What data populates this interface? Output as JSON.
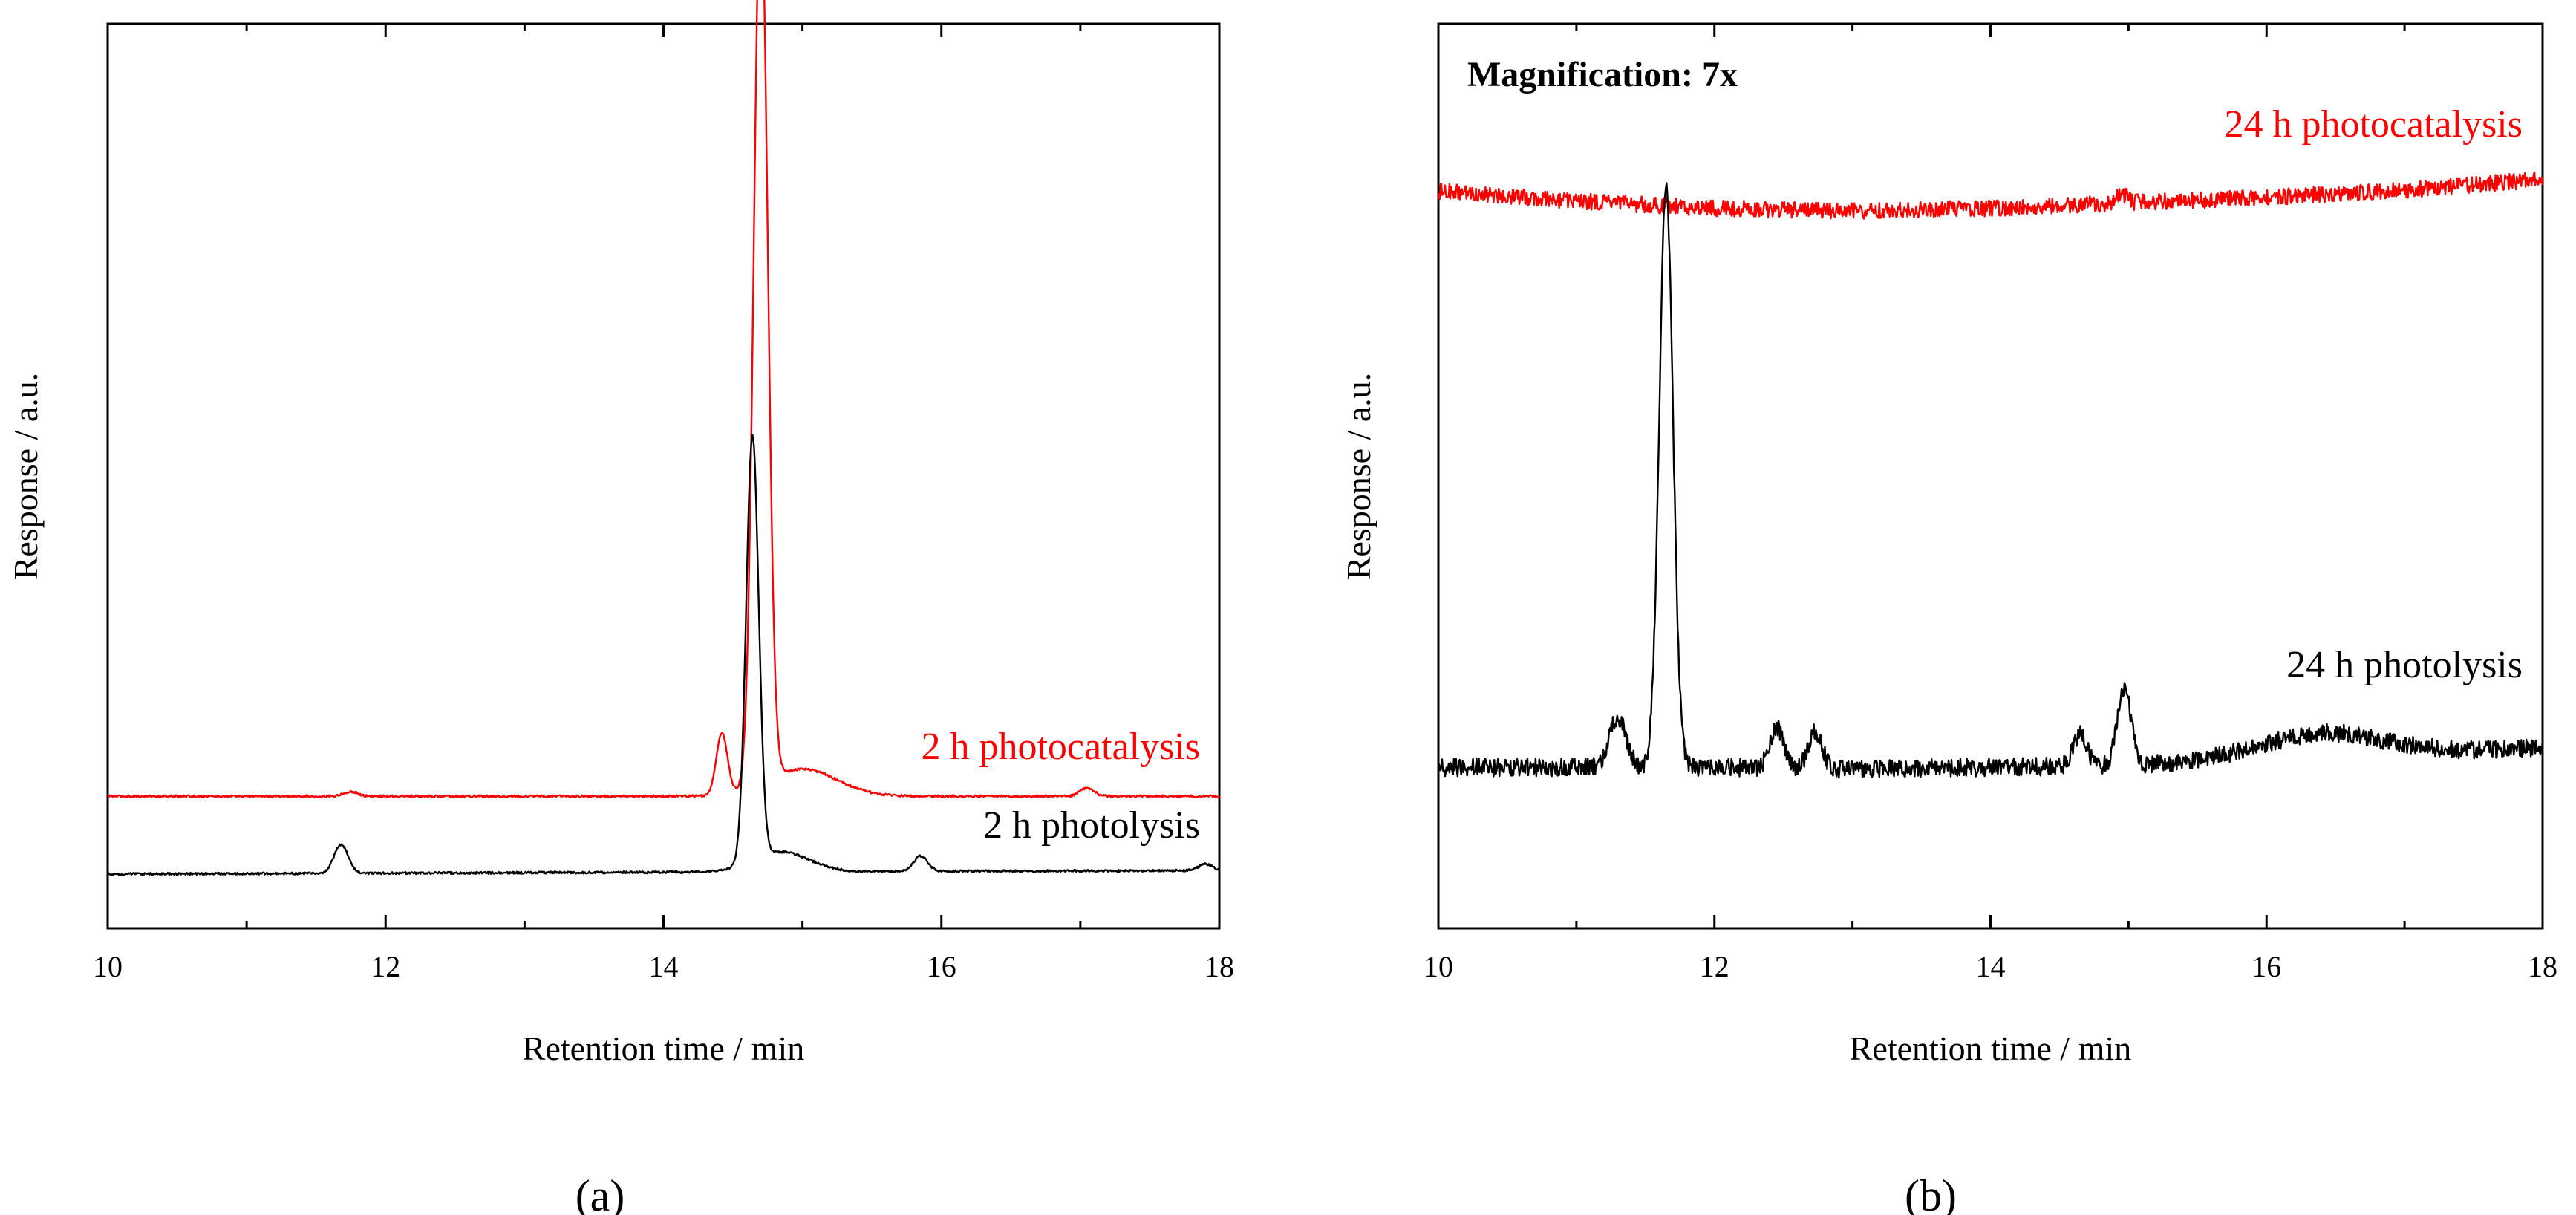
{
  "colors": {
    "red": "#ff0000",
    "black": "#000000",
    "axis": "#000000"
  },
  "chart_data": [
    {
      "id": "a",
      "type": "line",
      "panel_label": "(a)",
      "xlabel": "Retention time / min",
      "ylabel": "Response / a.u.",
      "xlim": [
        10,
        18
      ],
      "ylim": [
        0,
        100
      ],
      "x_ticks": [
        10,
        12,
        14,
        16,
        18
      ],
      "x_tick_labels": [
        "10",
        "12",
        "14",
        "16",
        "18"
      ],
      "annotation": null,
      "series": [
        {
          "name": "2 h photocatalysis",
          "label": "2 h photocatalysis",
          "color": "#ff0000",
          "noise": 0.12,
          "baseline": [
            [
              10,
              14.6
            ],
            [
              18,
              14.6
            ]
          ],
          "peaks": [
            [
              11.75,
              0.5,
              0.05
            ],
            [
              14.42,
              6.8,
              0.04
            ],
            [
              14.7,
              99.0,
              0.05
            ],
            [
              15.0,
              3.0,
              0.25
            ],
            [
              17.05,
              0.9,
              0.05
            ]
          ]
        },
        {
          "name": "2 h photolysis",
          "label": "2 h photolysis",
          "color": "#000000",
          "noise": 0.12,
          "baseline": [
            [
              10,
              6.0
            ],
            [
              18,
              6.4
            ]
          ],
          "peaks": [
            [
              11.68,
              3.2,
              0.05
            ],
            [
              14.64,
              47.0,
              0.045
            ],
            [
              14.85,
              2.2,
              0.2
            ],
            [
              15.85,
              1.7,
              0.05
            ],
            [
              17.9,
              0.7,
              0.05
            ]
          ]
        }
      ]
    },
    {
      "id": "b",
      "type": "line",
      "panel_label": "(b)",
      "xlabel": "Retention time / min",
      "ylabel": "Response / a.u.",
      "xlim": [
        10,
        18
      ],
      "ylim": [
        0,
        100
      ],
      "x_ticks": [
        10,
        12,
        14,
        16,
        18
      ],
      "x_tick_labels": [
        "10",
        "12",
        "14",
        "16",
        "18"
      ],
      "annotation": "Magnification: 7x",
      "series": [
        {
          "name": "24 h photocatalysis",
          "label": "24 h photocatalysis",
          "color": "#ff0000",
          "noise": 0.9,
          "baseline": [
            [
              10,
              81.5
            ],
            [
              11,
              80.4
            ],
            [
              12,
              79.6
            ],
            [
              13,
              79.3
            ],
            [
              14,
              79.6
            ],
            [
              15,
              80.2
            ],
            [
              16,
              80.8
            ],
            [
              17,
              81.6
            ],
            [
              18,
              82.8
            ]
          ],
          "peaks": [
            [
              14.95,
              1.0,
              0.04
            ]
          ]
        },
        {
          "name": "24 h photolysis",
          "label": "24 h photolysis",
          "color": "#000000",
          "noise": 1.0,
          "baseline": [
            [
              10,
              17.8
            ],
            [
              11,
              17.8
            ],
            [
              12,
              17.8
            ],
            [
              13,
              17.6
            ],
            [
              14,
              17.8
            ],
            [
              15,
              18.0
            ],
            [
              16,
              18.5
            ],
            [
              17,
              19.2
            ],
            [
              18,
              20.0
            ]
          ],
          "peaks": [
            [
              11.3,
              5.5,
              0.06
            ],
            [
              11.65,
              64.0,
              0.05
            ],
            [
              12.45,
              4.5,
              0.05
            ],
            [
              12.73,
              4.0,
              0.05
            ],
            [
              14.65,
              3.5,
              0.05
            ],
            [
              14.97,
              8.5,
              0.05
            ],
            [
              16.4,
              2.8,
              0.45
            ]
          ]
        }
      ]
    }
  ]
}
